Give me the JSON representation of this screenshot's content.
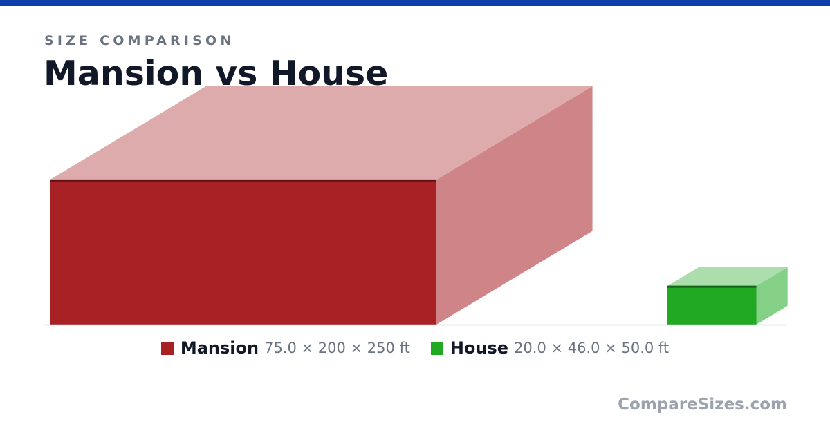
{
  "colors": {
    "topbar": "#0f3fa8",
    "mansion": "#a72125",
    "house": "#21a924",
    "baseline": "#d1d5db"
  },
  "header": {
    "eyebrow": "SIZE COMPARISON",
    "title": "Mansion vs House"
  },
  "chart_data": {
    "type": "size-comparison",
    "unit": "ft",
    "items": [
      {
        "name": "Mansion",
        "height": 75.0,
        "width": 200,
        "depth": 250,
        "dims": "75.0 × 200 × 250 ft",
        "color": "#a72125"
      },
      {
        "name": "House",
        "height": 20.0,
        "width": 46.0,
        "depth": 50.0,
        "dims": "20.0 × 46.0 × 50.0 ft",
        "color": "#21a924"
      }
    ]
  },
  "footer": {
    "brand": "CompareSizes.com"
  }
}
